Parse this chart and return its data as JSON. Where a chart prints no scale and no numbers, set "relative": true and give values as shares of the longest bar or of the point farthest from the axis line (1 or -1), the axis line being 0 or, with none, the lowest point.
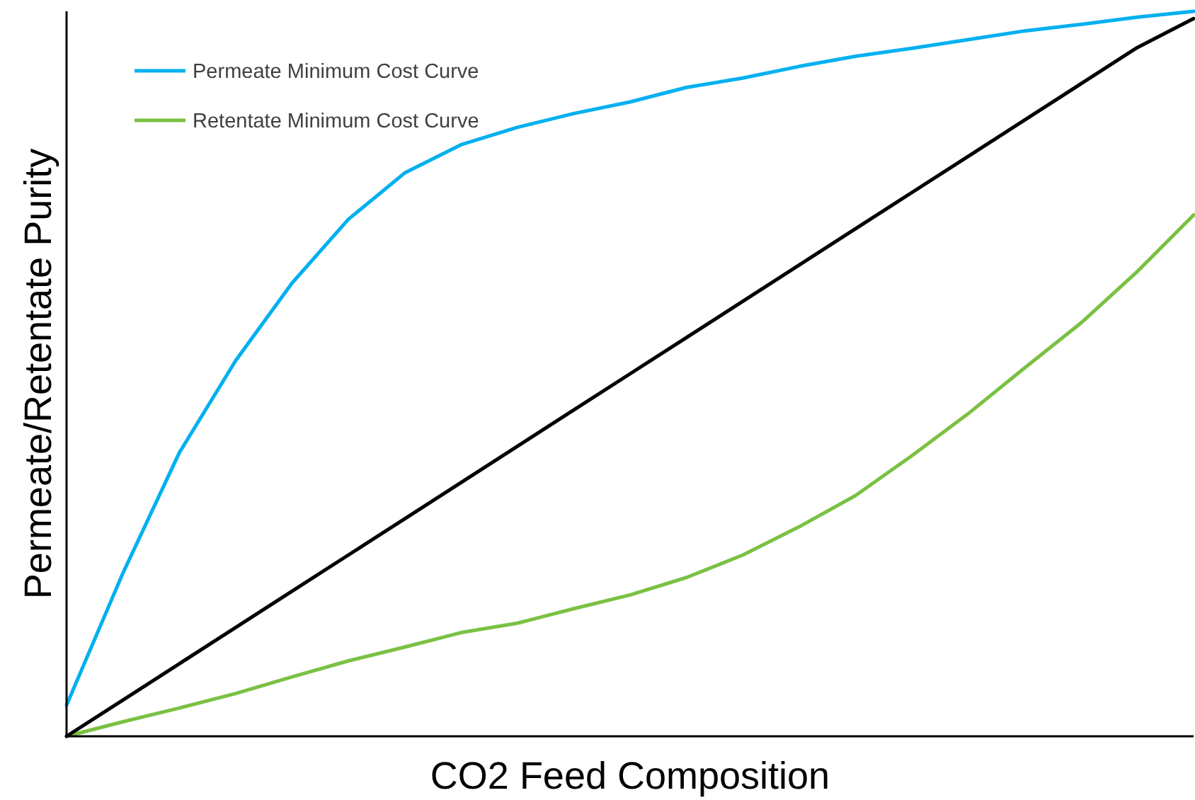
{
  "chart_data": {
    "type": "line",
    "relative": true,
    "xlabel": "CO2 Feed Composition",
    "ylabel": "Permeate/Retentate Purity",
    "legend": "top left",
    "grid": false,
    "marker": "none",
    "line_style": "solid",
    "categories": [
      null,
      null,
      null,
      null,
      null,
      null,
      null,
      null,
      null,
      null,
      null,
      null,
      null,
      null,
      null,
      null,
      null,
      null,
      null,
      null,
      null
    ],
    "series": [
      {
        "name": "Permeate Minimum Cost Curve",
        "color": "#00b0f0",
        "values": [
          0.043,
          0.225,
          0.391,
          0.518,
          0.625,
          0.713,
          0.777,
          0.816,
          0.84,
          0.859,
          0.875,
          0.895,
          0.908,
          0.924,
          0.938,
          0.949,
          0.961,
          0.973,
          0.982,
          0.992,
          1
        ]
      },
      {
        "name": "Retentate Minimum Cost Curve",
        "color": "#7ac143",
        "values": [
          0,
          0.02,
          0.039,
          0.059,
          0.082,
          0.104,
          0.123,
          0.143,
          0.156,
          0.176,
          0.195,
          0.219,
          0.25,
          0.289,
          0.332,
          0.387,
          0.445,
          0.508,
          0.57,
          0.641,
          0.719
        ]
      },
      {
        "color": "#000000",
        "values": [
          0,
          0.05,
          0.1,
          0.15,
          0.2,
          0.25,
          0.3,
          0.35,
          0.4,
          0.45,
          0.5,
          0.55,
          0.6,
          0.65,
          0.7,
          0.75,
          0.8,
          0.85,
          0.9,
          0.95,
          0.99
        ]
      }
    ]
  }
}
